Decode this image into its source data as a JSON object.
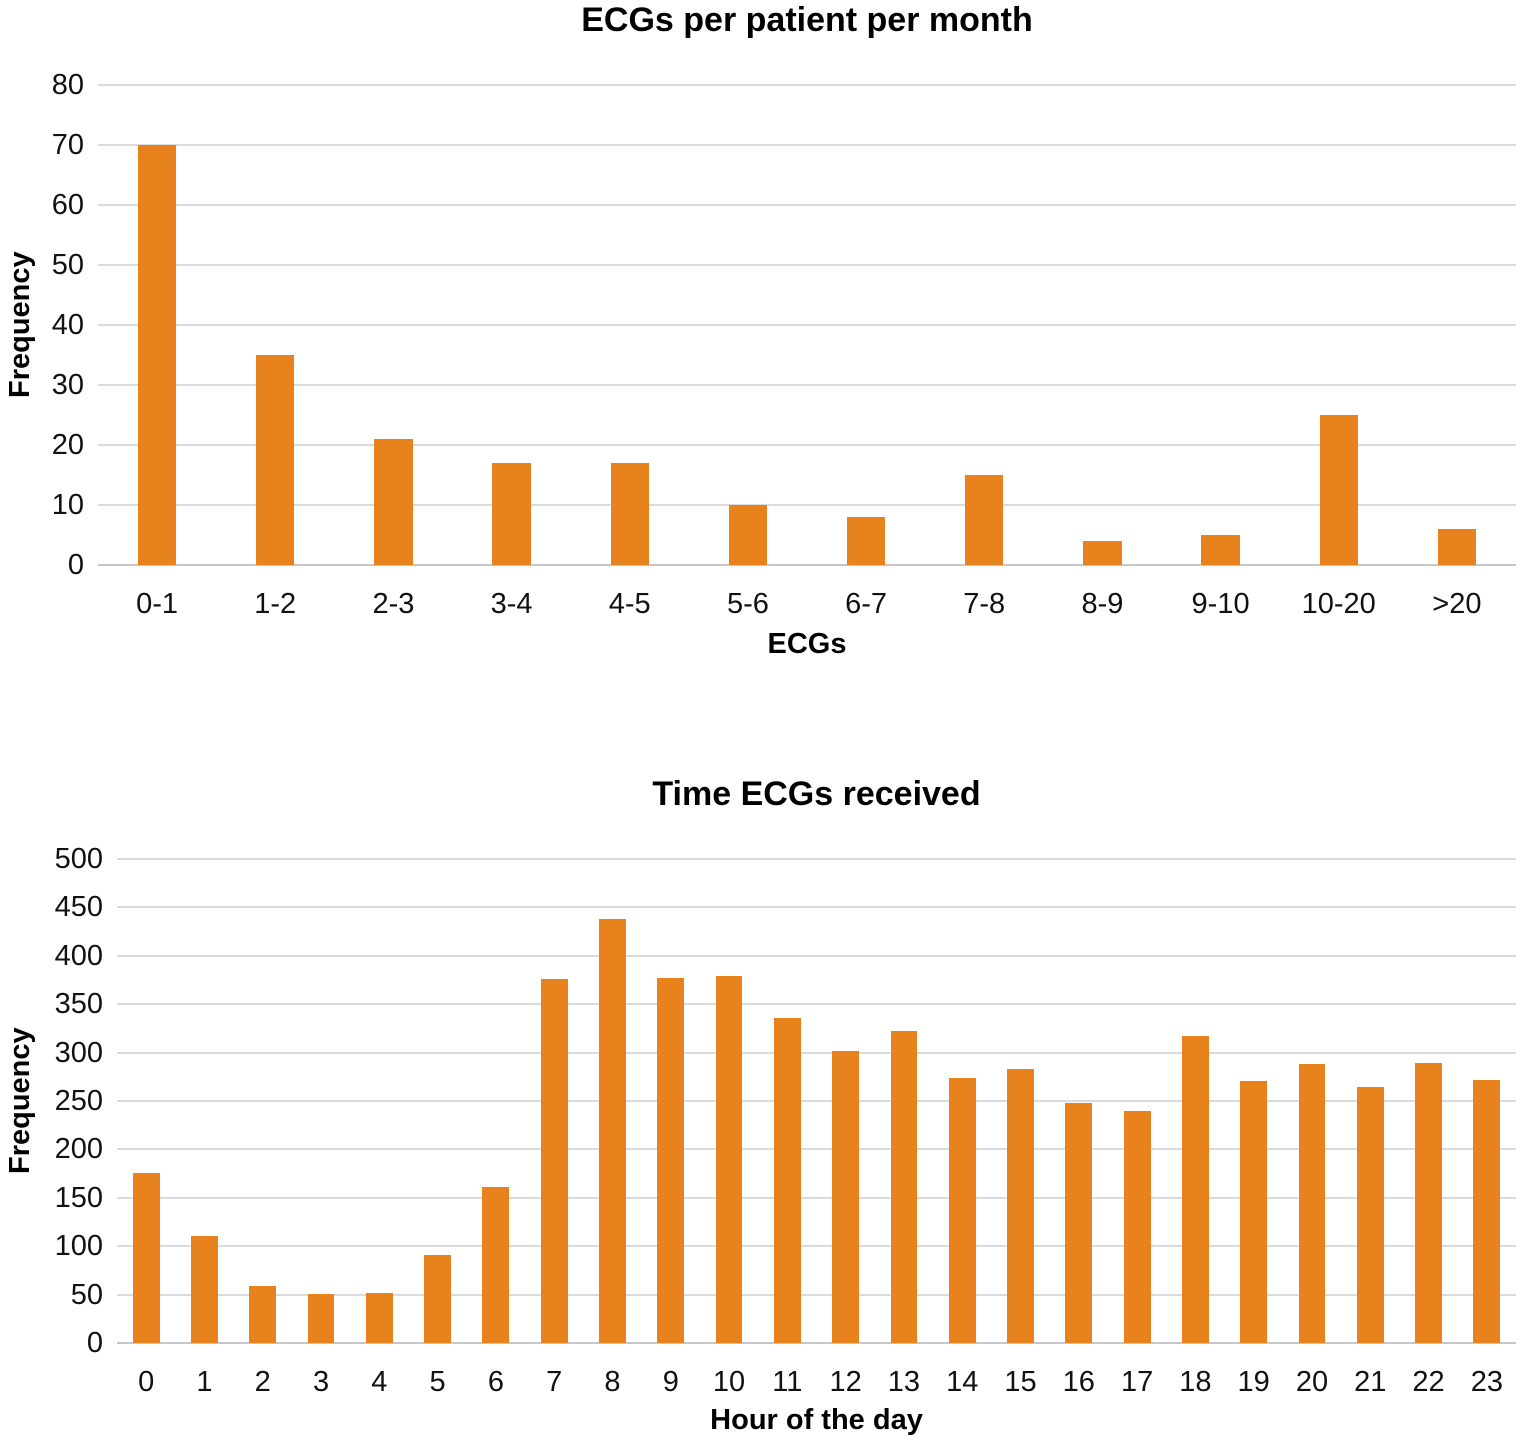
{
  "page": {
    "background": "#ffffff"
  },
  "colors": {
    "bar": "#e8821c",
    "gridline": "#dbdbdb",
    "axis_line": "#c6c6c6",
    "text": "#111111"
  },
  "chart_data": [
    {
      "type": "bar",
      "title": "ECGs per patient per month",
      "xlabel": "ECGs",
      "ylabel": "Frequency",
      "categories": [
        "0-1",
        "1-2",
        "2-3",
        "3-4",
        "4-5",
        "5-6",
        "6-7",
        "7-8",
        "8-9",
        "9-10",
        "10-20",
        ">20"
      ],
      "values": [
        70,
        35,
        21,
        17,
        17,
        10,
        8,
        15,
        4,
        5,
        25,
        6
      ],
      "ylim": [
        0,
        80
      ],
      "ytick_step": 10,
      "grid": true,
      "legend": "none"
    },
    {
      "type": "bar",
      "title": "Time ECGs received",
      "xlabel": "Hour of the day",
      "ylabel": "Frequency",
      "categories": [
        "0",
        "1",
        "2",
        "3",
        "4",
        "5",
        "6",
        "7",
        "8",
        "9",
        "10",
        "11",
        "12",
        "13",
        "14",
        "15",
        "16",
        "17",
        "18",
        "19",
        "20",
        "21",
        "22",
        "23"
      ],
      "values": [
        176,
        111,
        59,
        51,
        52,
        91,
        161,
        376,
        438,
        377,
        379,
        336,
        302,
        322,
        274,
        283,
        248,
        240,
        317,
        271,
        288,
        264,
        289,
        272
      ],
      "ylim": [
        0,
        500
      ],
      "ytick_step": 50,
      "grid": true,
      "legend": "none"
    }
  ]
}
